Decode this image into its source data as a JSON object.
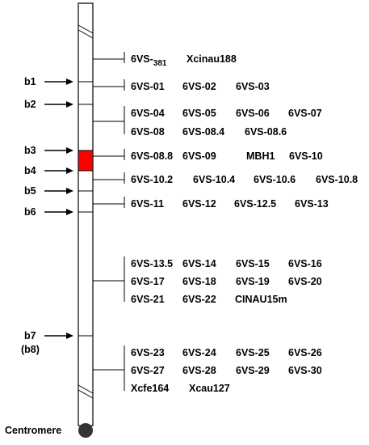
{
  "breakpoints": [
    {
      "label": "b1",
      "sub": ""
    },
    {
      "label": "b2",
      "sub": ""
    },
    {
      "label": "b3",
      "sub": ""
    },
    {
      "label": "b4",
      "sub": ""
    },
    {
      "label": "b5",
      "sub": ""
    },
    {
      "label": "b6",
      "sub": ""
    },
    {
      "label": "b7",
      "sub": "(b8)"
    }
  ],
  "marker_groups": [
    {
      "rows": [
        [
          "6VS-381",
          "Xcinau188"
        ]
      ]
    },
    {
      "rows": [
        [
          "6VS-01",
          "6VS-02",
          "6VS-03"
        ]
      ]
    },
    {
      "rows": [
        [
          "6VS-04",
          "6VS-05",
          "6VS-06",
          "6VS-07"
        ],
        [
          "6VS-08",
          "6VS-08.4",
          "6VS-08.6"
        ]
      ]
    },
    {
      "rows": [
        [
          "6VS-08.8",
          "6VS-09",
          "MBH1",
          "6VS-10"
        ]
      ]
    },
    {
      "rows": [
        [
          "6VS-10.2",
          "6VS-10.4",
          "6VS-10.6",
          "6VS-10.8"
        ]
      ]
    },
    {
      "rows": [
        [
          "6VS-11",
          "6VS-12",
          "6VS-12.5",
          "6VS-13"
        ]
      ]
    },
    {
      "rows": [
        [
          "6VS-13.5",
          "6VS-14",
          "6VS-15",
          "6VS-16"
        ],
        [
          "6VS-17",
          "6VS-18",
          "6VS-19",
          "6VS-20"
        ],
        [
          "6VS-21",
          "6VS-22",
          "CINAU15m"
        ]
      ]
    },
    {
      "rows": [
        [
          "6VS-23",
          "6VS-24",
          "6VS-25",
          "6VS-26"
        ],
        [
          "6VS-27",
          "6VS-28",
          "6VS-29",
          "6VS-30"
        ],
        [
          "Xcfe164",
          "Xcau127"
        ]
      ]
    }
  ],
  "centromere_label": "Centromere",
  "highlight_color": "#ff0000",
  "centromere_color": "#333333"
}
